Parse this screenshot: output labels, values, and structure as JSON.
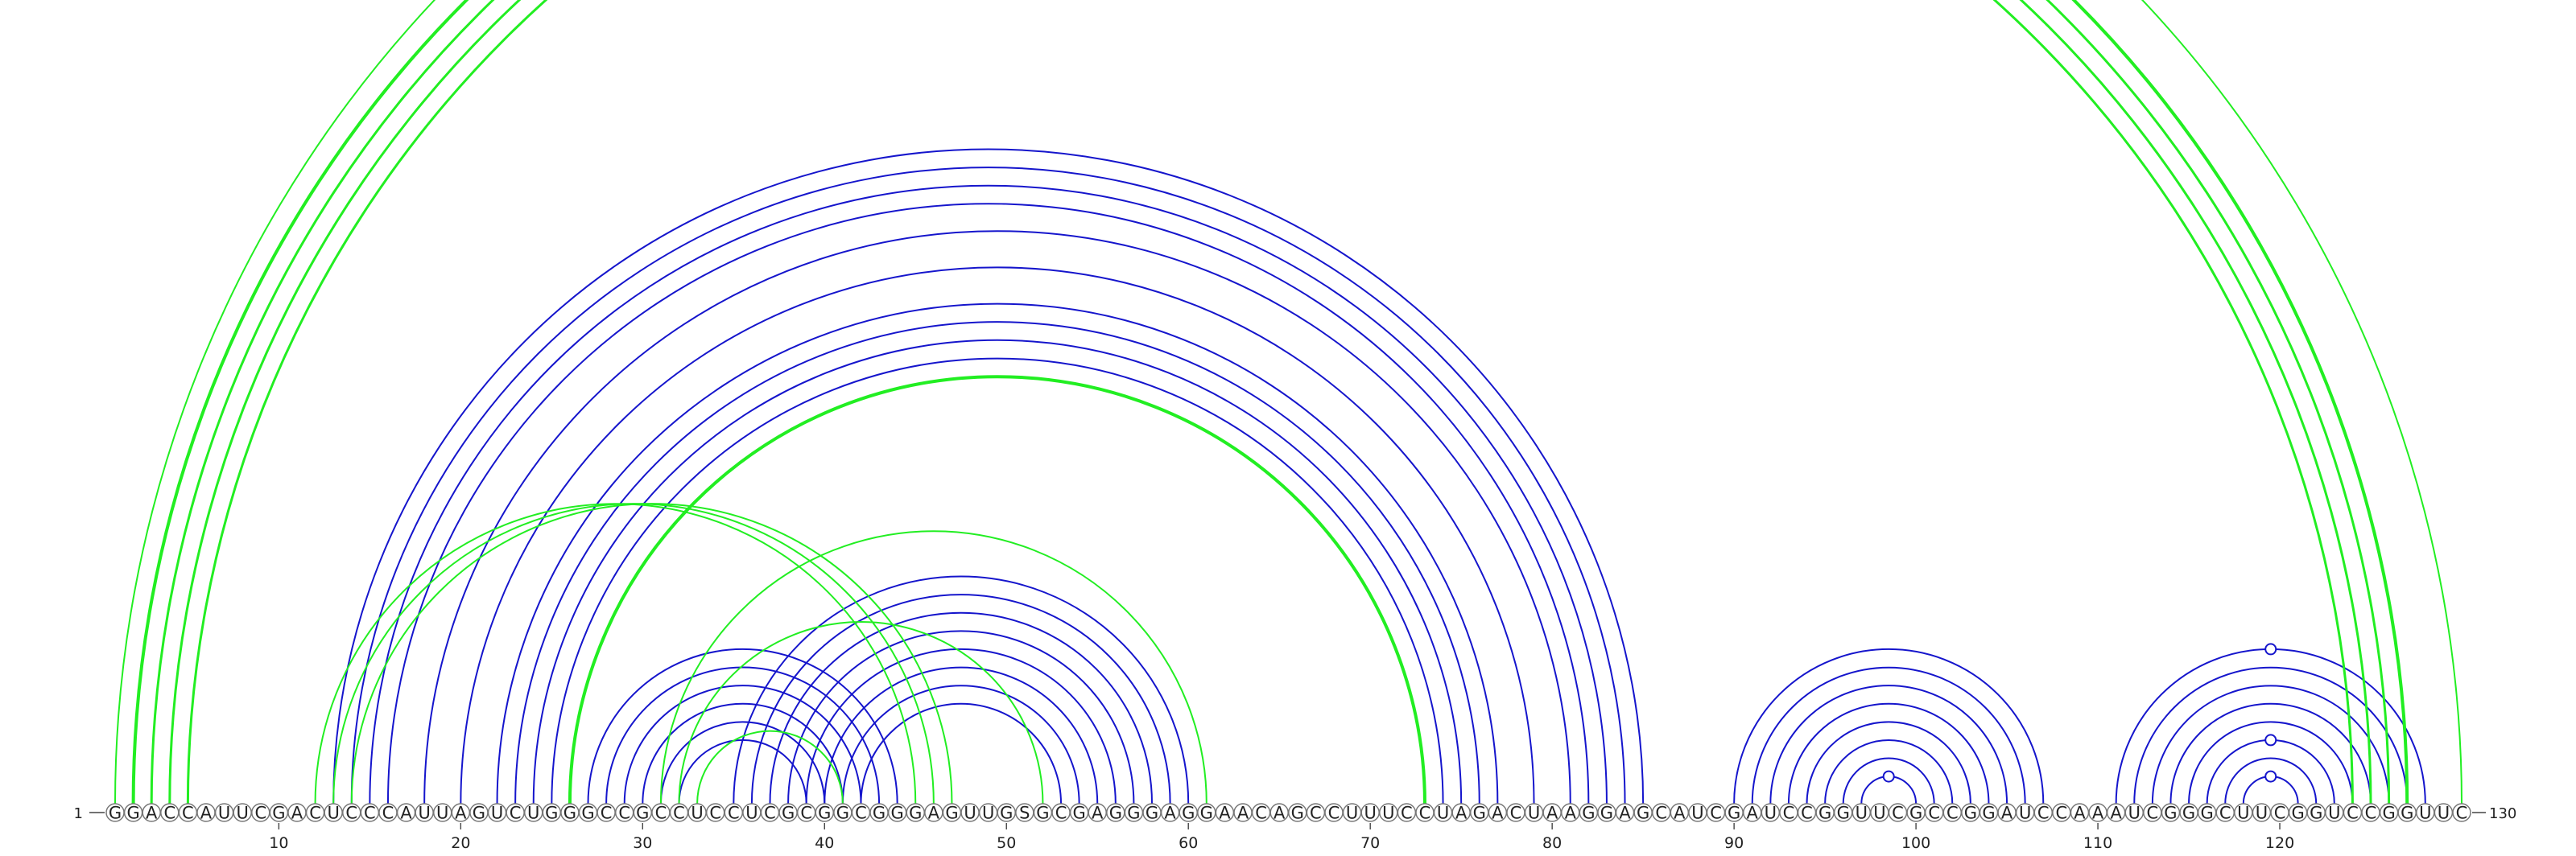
{
  "sequence": "GGACCAUUCGACUCCCAUUAGUCUGGGCCGCCUCCUCGCGGCGGGAGUUGSGCGAGGGAGGAACAGCCUUUCCUAGACUAAGGAGCAUCGAUCCGGUUCGCCGGAUCCAAAUCGGGCUUCGGUCCGGUUC",
  "labels": {
    "start": "1",
    "end": "130"
  },
  "ticks": [
    10,
    20,
    30,
    40,
    50,
    60,
    70,
    80,
    90,
    100,
    110,
    120
  ],
  "colors": {
    "green": "#22ee22",
    "blue": "#1515cc"
  },
  "pairs_green": [
    [
      1,
      130,
      2
    ],
    [
      2,
      127,
      4
    ],
    [
      3,
      126,
      3
    ],
    [
      4,
      125,
      3
    ],
    [
      5,
      124,
      3
    ],
    [
      12,
      45,
      2
    ],
    [
      13,
      46,
      2
    ],
    [
      14,
      47,
      2
    ],
    [
      26,
      73,
      4
    ],
    [
      31,
      61,
      2
    ],
    [
      32,
      52,
      2
    ],
    [
      33,
      41,
      2
    ]
  ],
  "pairs_blue": [
    [
      13,
      85,
      2
    ],
    [
      14,
      84,
      2
    ],
    [
      15,
      83,
      2
    ],
    [
      16,
      82,
      2
    ],
    [
      18,
      81,
      2
    ],
    [
      20,
      79,
      2
    ],
    [
      22,
      77,
      2
    ],
    [
      23,
      76,
      2
    ],
    [
      24,
      75,
      2
    ],
    [
      25,
      74,
      2
    ],
    [
      27,
      44,
      2
    ],
    [
      28,
      43,
      2
    ],
    [
      29,
      42,
      2
    ],
    [
      30,
      41,
      2
    ],
    [
      31,
      40,
      2
    ],
    [
      32,
      39,
      2
    ],
    [
      35,
      60,
      2
    ],
    [
      36,
      59,
      2
    ],
    [
      37,
      58,
      2
    ],
    [
      38,
      57,
      2
    ],
    [
      39,
      56,
      2
    ],
    [
      40,
      55,
      2
    ],
    [
      41,
      54,
      2
    ],
    [
      42,
      53,
      2
    ],
    [
      90,
      107,
      2
    ],
    [
      91,
      106,
      2
    ],
    [
      92,
      105,
      2
    ],
    [
      93,
      104,
      2
    ],
    [
      94,
      103,
      2
    ],
    [
      95,
      102,
      2
    ],
    [
      96,
      101,
      2
    ],
    [
      97,
      100,
      2
    ],
    [
      111,
      128,
      2
    ],
    [
      112,
      127,
      2
    ],
    [
      113,
      126,
      2
    ],
    [
      114,
      125,
      2
    ],
    [
      115,
      124,
      2
    ],
    [
      116,
      123,
      2
    ],
    [
      117,
      122,
      2
    ],
    [
      118,
      121,
      2
    ]
  ],
  "markers": [
    {
      "pair": [
        1,
        130
      ],
      "color": "green"
    },
    {
      "pair": [
        97,
        100
      ],
      "color": "blue"
    },
    {
      "pair": [
        111,
        128
      ],
      "color": "blue"
    },
    {
      "pair": [
        116,
        123
      ],
      "color": "blue"
    },
    {
      "pair": [
        118,
        121
      ],
      "color": "blue"
    }
  ]
}
